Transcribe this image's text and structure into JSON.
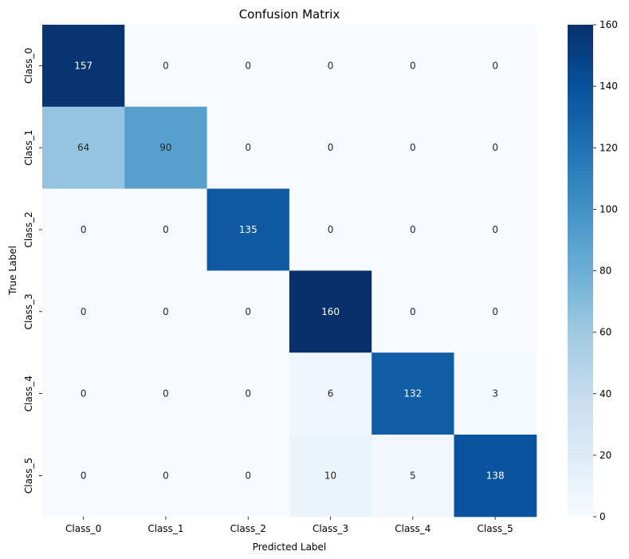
{
  "chart_data": {
    "type": "heatmap",
    "title": "Confusion Matrix",
    "xlabel": "Predicted Label",
    "ylabel": "True Label",
    "x_categories": [
      "Class_0",
      "Class_1",
      "Class_2",
      "Class_3",
      "Class_4",
      "Class_5"
    ],
    "y_categories": [
      "Class_0",
      "Class_1",
      "Class_2",
      "Class_3",
      "Class_4",
      "Class_5"
    ],
    "values": [
      [
        157,
        0,
        0,
        0,
        0,
        0
      ],
      [
        64,
        90,
        0,
        0,
        0,
        0
      ],
      [
        0,
        0,
        135,
        0,
        0,
        0
      ],
      [
        0,
        0,
        0,
        160,
        0,
        0
      ],
      [
        0,
        0,
        0,
        6,
        132,
        3
      ],
      [
        0,
        0,
        0,
        10,
        5,
        138
      ]
    ],
    "colorbar": {
      "min": 0,
      "max": 160,
      "ticks": [
        "0",
        "20",
        "40",
        "60",
        "80",
        "100",
        "120",
        "140",
        "160"
      ]
    },
    "colormap": "Blues",
    "colormap_stops": [
      "#f7fbff",
      "#deebf7",
      "#c6dbef",
      "#9ecae1",
      "#6baed6",
      "#4292c6",
      "#2171b5",
      "#08519c",
      "#08306b"
    ]
  }
}
